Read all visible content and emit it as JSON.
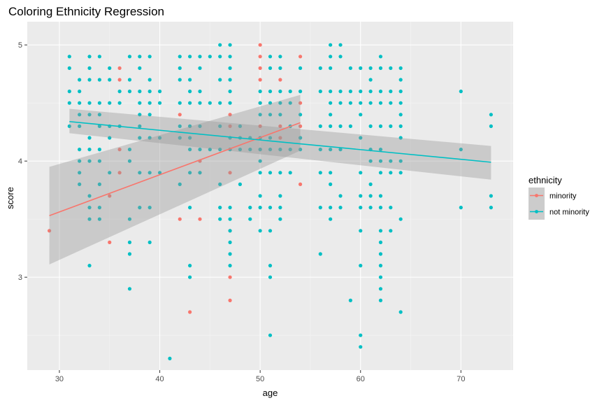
{
  "chart_data": {
    "type": "scatter",
    "title": "Coloring Ethnicity Regression",
    "xlabel": "age",
    "ylabel": "score",
    "xlim": [
      26.8,
      75.2
    ],
    "ylim": [
      2.2,
      5.2
    ],
    "x_ticks": [
      30,
      40,
      50,
      60,
      70
    ],
    "y_ticks": [
      3,
      4,
      5
    ],
    "grid": true,
    "legend": {
      "title": "ethnicity",
      "position": "right"
    },
    "series": [
      {
        "name": "minority",
        "color": "#F8766D",
        "points": [
          [
            29,
            3.4
          ],
          [
            35,
            3.3
          ],
          [
            35,
            3.7
          ],
          [
            36,
            4.8
          ],
          [
            36,
            4.7
          ],
          [
            36,
            4.1
          ],
          [
            36,
            3.9
          ],
          [
            42,
            4.4
          ],
          [
            42,
            3.5
          ],
          [
            43,
            4.3
          ],
          [
            43,
            2.7
          ],
          [
            44,
            4.0
          ],
          [
            44,
            3.9
          ],
          [
            44,
            3.5
          ],
          [
            47,
            4.4
          ],
          [
            47,
            4.3
          ],
          [
            47,
            3.9
          ],
          [
            47,
            3.4
          ],
          [
            47,
            3.0
          ],
          [
            47,
            2.8
          ],
          [
            50,
            5.0
          ],
          [
            50,
            4.9
          ],
          [
            50,
            4.8
          ],
          [
            50,
            4.7
          ],
          [
            50,
            4.5
          ],
          [
            50,
            4.3
          ],
          [
            50,
            4.2
          ],
          [
            50,
            4.1
          ],
          [
            52,
            4.7
          ],
          [
            52,
            4.3
          ],
          [
            52,
            4.2
          ],
          [
            54,
            4.9
          ],
          [
            54,
            4.5
          ],
          [
            54,
            4.3
          ],
          [
            54,
            4.2
          ],
          [
            54,
            3.8
          ]
        ],
        "fit": {
          "x": [
            29,
            54
          ],
          "y": [
            3.53,
            4.33
          ]
        },
        "ci": {
          "upper": [
            3.95,
            4.57
          ],
          "lower": [
            3.11,
            4.09
          ]
        }
      },
      {
        "name": "not minority",
        "color": "#00BFC4",
        "points": [
          [
            31,
            4.9
          ],
          [
            31,
            4.8
          ],
          [
            31,
            4.6
          ],
          [
            31,
            4.5
          ],
          [
            31,
            4.3
          ],
          [
            32,
            4.7
          ],
          [
            32,
            4.6
          ],
          [
            32,
            4.5
          ],
          [
            32,
            4.4
          ],
          [
            32,
            4.3
          ],
          [
            32,
            4.1
          ],
          [
            32,
            4.0
          ],
          [
            32,
            3.9
          ],
          [
            32,
            3.8
          ],
          [
            33,
            4.9
          ],
          [
            33,
            4.8
          ],
          [
            33,
            4.7
          ],
          [
            33,
            4.5
          ],
          [
            33,
            4.4
          ],
          [
            33,
            4.2
          ],
          [
            33,
            4.1
          ],
          [
            33,
            4.0
          ],
          [
            33,
            3.7
          ],
          [
            33,
            3.6
          ],
          [
            33,
            3.5
          ],
          [
            33,
            3.1
          ],
          [
            34,
            4.9
          ],
          [
            34,
            4.7
          ],
          [
            34,
            4.5
          ],
          [
            34,
            4.4
          ],
          [
            34,
            4.3
          ],
          [
            34,
            4.1
          ],
          [
            34,
            4.0
          ],
          [
            34,
            3.8
          ],
          [
            34,
            3.6
          ],
          [
            34,
            3.5
          ],
          [
            35,
            4.8
          ],
          [
            35,
            4.7
          ],
          [
            35,
            4.5
          ],
          [
            35,
            4.3
          ],
          [
            35,
            4.2
          ],
          [
            35,
            3.9
          ],
          [
            36,
            4.6
          ],
          [
            36,
            4.5
          ],
          [
            36,
            4.3
          ],
          [
            37,
            4.9
          ],
          [
            37,
            4.7
          ],
          [
            37,
            4.6
          ],
          [
            37,
            4.1
          ],
          [
            37,
            4.0
          ],
          [
            37,
            3.5
          ],
          [
            37,
            3.3
          ],
          [
            37,
            3.2
          ],
          [
            37,
            2.9
          ],
          [
            38,
            4.9
          ],
          [
            38,
            4.8
          ],
          [
            38,
            4.6
          ],
          [
            38,
            4.5
          ],
          [
            38,
            4.4
          ],
          [
            38,
            4.3
          ],
          [
            38,
            4.2
          ],
          [
            38,
            3.9
          ],
          [
            38,
            3.6
          ],
          [
            39,
            4.9
          ],
          [
            39,
            4.7
          ],
          [
            39,
            4.6
          ],
          [
            39,
            4.5
          ],
          [
            39,
            4.4
          ],
          [
            39,
            4.2
          ],
          [
            39,
            3.9
          ],
          [
            39,
            3.6
          ],
          [
            39,
            3.3
          ],
          [
            40,
            4.6
          ],
          [
            40,
            4.5
          ],
          [
            40,
            4.2
          ],
          [
            40,
            3.9
          ],
          [
            41,
            2.3
          ],
          [
            42,
            4.9
          ],
          [
            42,
            4.8
          ],
          [
            42,
            4.7
          ],
          [
            42,
            4.5
          ],
          [
            42,
            4.3
          ],
          [
            42,
            4.2
          ],
          [
            42,
            3.8
          ],
          [
            43,
            4.9
          ],
          [
            43,
            4.7
          ],
          [
            43,
            4.6
          ],
          [
            43,
            4.5
          ],
          [
            43,
            4.3
          ],
          [
            43,
            4.2
          ],
          [
            43,
            4.1
          ],
          [
            43,
            3.9
          ],
          [
            43,
            3.6
          ],
          [
            43,
            3.1
          ],
          [
            43,
            3.0
          ],
          [
            44,
            4.9
          ],
          [
            44,
            4.8
          ],
          [
            44,
            4.6
          ],
          [
            44,
            4.5
          ],
          [
            44,
            4.3
          ],
          [
            44,
            4.1
          ],
          [
            44,
            3.9
          ],
          [
            45,
            4.9
          ],
          [
            45,
            4.5
          ],
          [
            45,
            4.1
          ],
          [
            46,
            5.0
          ],
          [
            46,
            4.9
          ],
          [
            46,
            4.7
          ],
          [
            46,
            4.5
          ],
          [
            46,
            4.3
          ],
          [
            46,
            4.1
          ],
          [
            46,
            3.8
          ],
          [
            46,
            3.6
          ],
          [
            46,
            3.5
          ],
          [
            47,
            5.0
          ],
          [
            47,
            4.9
          ],
          [
            47,
            4.8
          ],
          [
            47,
            4.7
          ],
          [
            47,
            4.6
          ],
          [
            47,
            4.5
          ],
          [
            47,
            4.2
          ],
          [
            47,
            4.1
          ],
          [
            47,
            3.6
          ],
          [
            47,
            3.5
          ],
          [
            47,
            3.4
          ],
          [
            47,
            3.3
          ],
          [
            47,
            3.2
          ],
          [
            47,
            3.1
          ],
          [
            48,
            4.3
          ],
          [
            48,
            4.2
          ],
          [
            48,
            4.1
          ],
          [
            48,
            3.8
          ],
          [
            49,
            4.2
          ],
          [
            49,
            4.1
          ],
          [
            49,
            3.6
          ],
          [
            49,
            3.5
          ],
          [
            50,
            4.6
          ],
          [
            50,
            4.5
          ],
          [
            50,
            4.4
          ],
          [
            50,
            4.2
          ],
          [
            50,
            4.1
          ],
          [
            50,
            4.0
          ],
          [
            50,
            3.9
          ],
          [
            50,
            3.7
          ],
          [
            50,
            3.6
          ],
          [
            50,
            3.4
          ],
          [
            51,
            4.9
          ],
          [
            51,
            4.8
          ],
          [
            51,
            4.6
          ],
          [
            51,
            4.5
          ],
          [
            51,
            4.4
          ],
          [
            51,
            4.2
          ],
          [
            51,
            4.1
          ],
          [
            51,
            3.9
          ],
          [
            51,
            3.6
          ],
          [
            51,
            3.4
          ],
          [
            51,
            3.1
          ],
          [
            51,
            3.0
          ],
          [
            51,
            2.5
          ],
          [
            52,
            4.9
          ],
          [
            52,
            4.8
          ],
          [
            52,
            4.6
          ],
          [
            52,
            4.5
          ],
          [
            52,
            4.4
          ],
          [
            52,
            4.1
          ],
          [
            52,
            3.9
          ],
          [
            52,
            3.7
          ],
          [
            52,
            3.6
          ],
          [
            52,
            3.5
          ],
          [
            53,
            4.6
          ],
          [
            53,
            4.5
          ],
          [
            53,
            4.3
          ],
          [
            53,
            4.1
          ],
          [
            53,
            3.9
          ],
          [
            54,
            4.8
          ],
          [
            54,
            4.6
          ],
          [
            54,
            4.4
          ],
          [
            54,
            4.2
          ],
          [
            54,
            4.1
          ],
          [
            56,
            4.8
          ],
          [
            56,
            4.6
          ],
          [
            56,
            4.3
          ],
          [
            56,
            4.1
          ],
          [
            56,
            3.9
          ],
          [
            56,
            3.6
          ],
          [
            56,
            3.2
          ],
          [
            57,
            5.0
          ],
          [
            57,
            4.9
          ],
          [
            57,
            4.8
          ],
          [
            57,
            4.6
          ],
          [
            57,
            4.5
          ],
          [
            57,
            4.4
          ],
          [
            57,
            4.3
          ],
          [
            57,
            4.1
          ],
          [
            57,
            3.9
          ],
          [
            57,
            3.8
          ],
          [
            57,
            3.6
          ],
          [
            57,
            3.5
          ],
          [
            58,
            5.0
          ],
          [
            58,
            4.9
          ],
          [
            58,
            4.6
          ],
          [
            58,
            4.5
          ],
          [
            58,
            4.3
          ],
          [
            58,
            4.1
          ],
          [
            58,
            3.7
          ],
          [
            58,
            3.6
          ],
          [
            59,
            4.8
          ],
          [
            59,
            4.6
          ],
          [
            59,
            4.5
          ],
          [
            59,
            4.3
          ],
          [
            59,
            2.8
          ],
          [
            60,
            4.8
          ],
          [
            60,
            4.6
          ],
          [
            60,
            4.5
          ],
          [
            60,
            4.4
          ],
          [
            60,
            4.2
          ],
          [
            60,
            3.9
          ],
          [
            60,
            3.7
          ],
          [
            60,
            3.6
          ],
          [
            60,
            3.4
          ],
          [
            60,
            3.1
          ],
          [
            60,
            2.5
          ],
          [
            60,
            2.4
          ],
          [
            61,
            4.8
          ],
          [
            61,
            4.7
          ],
          [
            61,
            4.6
          ],
          [
            61,
            4.5
          ],
          [
            61,
            4.3
          ],
          [
            61,
            4.1
          ],
          [
            61,
            4.0
          ],
          [
            61,
            3.8
          ],
          [
            61,
            3.7
          ],
          [
            61,
            3.6
          ],
          [
            62,
            4.9
          ],
          [
            62,
            4.8
          ],
          [
            62,
            4.6
          ],
          [
            62,
            4.5
          ],
          [
            62,
            4.3
          ],
          [
            62,
            4.1
          ],
          [
            62,
            4.0
          ],
          [
            62,
            3.9
          ],
          [
            62,
            3.7
          ],
          [
            62,
            3.6
          ],
          [
            62,
            3.4
          ],
          [
            62,
            3.3
          ],
          [
            62,
            3.2
          ],
          [
            62,
            3.1
          ],
          [
            62,
            3.0
          ],
          [
            62,
            2.9
          ],
          [
            62,
            2.8
          ],
          [
            63,
            4.8
          ],
          [
            63,
            4.6
          ],
          [
            63,
            4.5
          ],
          [
            63,
            4.3
          ],
          [
            63,
            4.0
          ],
          [
            63,
            3.9
          ],
          [
            63,
            3.6
          ],
          [
            63,
            3.4
          ],
          [
            64,
            4.8
          ],
          [
            64,
            4.7
          ],
          [
            64,
            4.6
          ],
          [
            64,
            4.5
          ],
          [
            64,
            4.4
          ],
          [
            64,
            4.3
          ],
          [
            64,
            4.2
          ],
          [
            64,
            4.0
          ],
          [
            64,
            3.9
          ],
          [
            64,
            3.5
          ],
          [
            64,
            2.7
          ],
          [
            70,
            4.6
          ],
          [
            70,
            4.1
          ],
          [
            70,
            3.6
          ],
          [
            73,
            4.4
          ],
          [
            73,
            4.3
          ],
          [
            73,
            3.7
          ],
          [
            73,
            3.6
          ]
        ],
        "fit": {
          "x": [
            31,
            73
          ],
          "y": [
            4.34,
            3.99
          ]
        },
        "ci": {
          "upper": [
            4.45,
            4.13
          ],
          "lower": [
            4.24,
            3.84
          ]
        }
      }
    ]
  }
}
